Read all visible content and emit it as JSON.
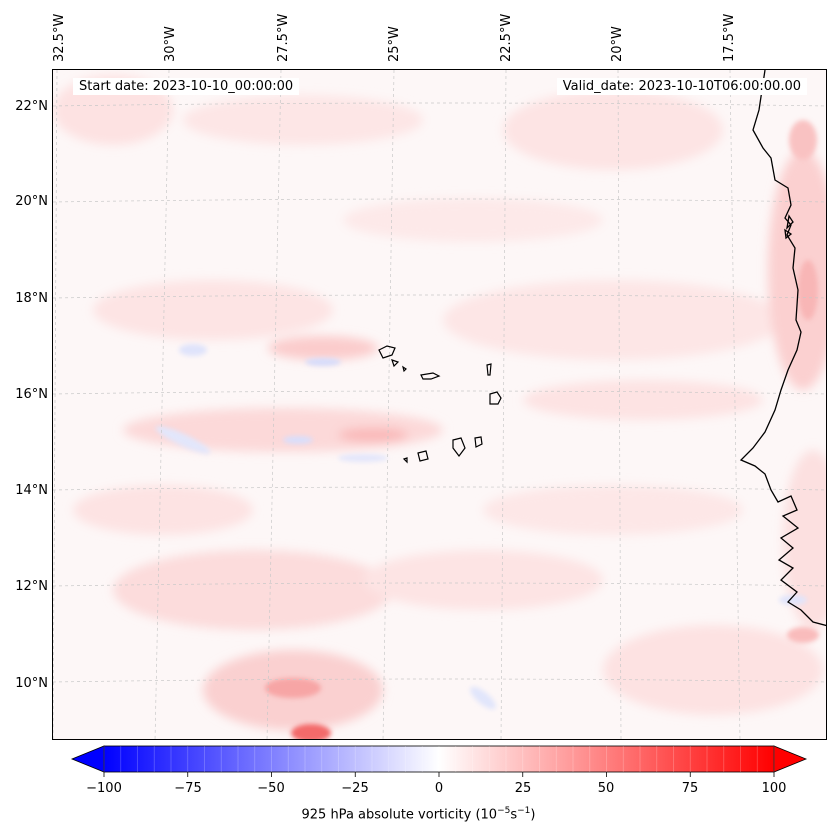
{
  "map": {
    "start_label": "Start date: 2023-10-10_00:00:00",
    "valid_label": "Valid_date: 2023-10-10T06:00:00.00",
    "lon_labels": [
      "32.5°W",
      "30°W",
      "27.5°W",
      "25°W",
      "22.5°W",
      "20°W",
      "17.5°W"
    ],
    "lat_labels": [
      "22°N",
      "20°N",
      "18°N",
      "16°N",
      "14°N",
      "12°N",
      "10°N"
    ],
    "colors": {
      "coast": "#000000",
      "grid": "#c8c8c8",
      "positive": "#ff0000",
      "negative": "#0000ff"
    }
  },
  "colorbar": {
    "ticks": [
      "−100",
      "−75",
      "−50",
      "−25",
      "0",
      "25",
      "50",
      "75",
      "100"
    ],
    "label": "925 hPa absolute vorticity (10",
    "label_exp1": "−5",
    "label_mid": "s",
    "label_exp2": "−1",
    "label_end": ")",
    "min": -100,
    "max": 100
  }
}
